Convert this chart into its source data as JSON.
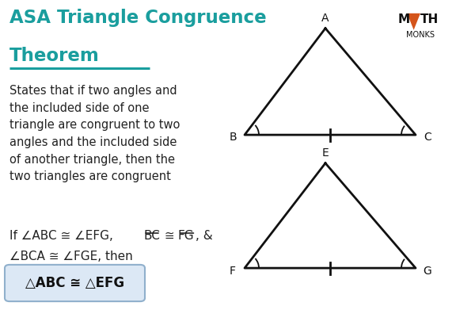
{
  "title_line1": "ASA Triangle Congruence",
  "title_line2": "Theorem",
  "title_color": "#1a9e9e",
  "bg_color": "#ffffff",
  "body_text": "States that if two angles and\nthe included side of one\ntriangle are congruent to two\nangles and the included side\nof another triangle, then the\ntwo triangles are congruent",
  "result_text": "△ABC ≅ △EFG",
  "result_box_color": "#dce8f5",
  "result_border_color": "#90b0cc",
  "tri1": {
    "A": [
      0.685,
      0.915
    ],
    "B": [
      0.515,
      0.595
    ],
    "C": [
      0.875,
      0.595
    ],
    "labels": {
      "A": [
        0.685,
        0.945
      ],
      "B": [
        0.49,
        0.588
      ],
      "C": [
        0.9,
        0.588
      ]
    }
  },
  "tri2": {
    "E": [
      0.685,
      0.51
    ],
    "F": [
      0.515,
      0.195
    ],
    "G": [
      0.875,
      0.195
    ],
    "labels": {
      "E": [
        0.685,
        0.54
      ],
      "F": [
        0.49,
        0.185
      ],
      "G": [
        0.9,
        0.185
      ]
    }
  },
  "line_color": "#111111",
  "logo_triangle_color": "#d4541a",
  "logo_text_color": "#111111"
}
